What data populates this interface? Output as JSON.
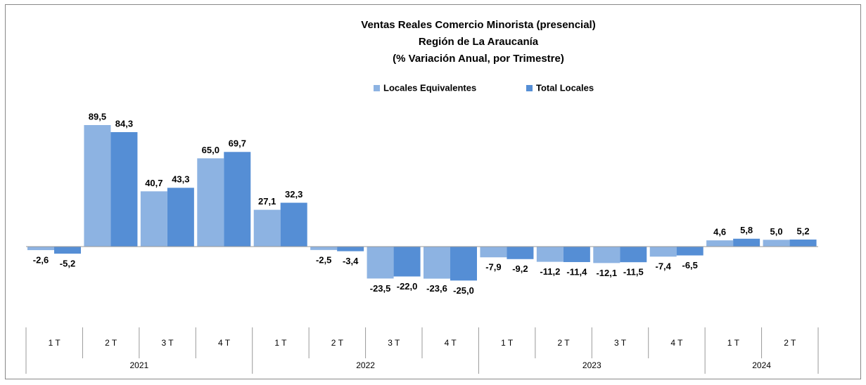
{
  "chart_data": {
    "type": "bar",
    "title": [
      "Ventas Reales Comercio Minorista  (presencial)",
      "Región de La Araucanía",
      "(% Variación Anual, por Trimestre)"
    ],
    "categories": [
      "1 T",
      "2 T",
      "3 T",
      "4 T",
      "1 T",
      "2 T",
      "3 T",
      "4 T",
      "1 T",
      "2 T",
      "3 T",
      "4 T",
      "1 T",
      "2 T"
    ],
    "years": [
      "2021",
      "2021",
      "2021",
      "2021",
      "2022",
      "2022",
      "2022",
      "2022",
      "2023",
      "2023",
      "2023",
      "2023",
      "2024",
      "2024"
    ],
    "series": [
      {
        "name": "Locales Equivalentes",
        "color": "#8db3e2",
        "values": [
          -2.6,
          89.5,
          40.7,
          65.0,
          27.1,
          -2.5,
          -23.5,
          -23.6,
          -7.9,
          -11.2,
          -12.1,
          -7.4,
          4.6,
          5.0
        ],
        "value_labels": [
          "-2,6",
          "89,5",
          "40,7",
          "65,0",
          "27,1",
          "-2,5",
          "-23,5",
          "-23,6",
          "-7,9",
          "-11,2",
          "-12,1",
          "-7,4",
          "4,6",
          "5,0"
        ]
      },
      {
        "name": "Total Locales",
        "color": "#558ed5",
        "values": [
          -5.2,
          84.3,
          43.3,
          69.7,
          32.3,
          -3.4,
          -22.0,
          -25.0,
          -9.2,
          -11.4,
          -11.5,
          -6.5,
          5.8,
          5.2
        ],
        "value_labels": [
          "-5,2",
          "84,3",
          "43,3",
          "69,7",
          "32,3",
          "-3,4",
          "-22,0",
          "-25,0",
          "-9,2",
          "-11,4",
          "-11,5",
          "-6,5",
          "5,8",
          "5,2"
        ]
      }
    ],
    "legend": "top"
  }
}
